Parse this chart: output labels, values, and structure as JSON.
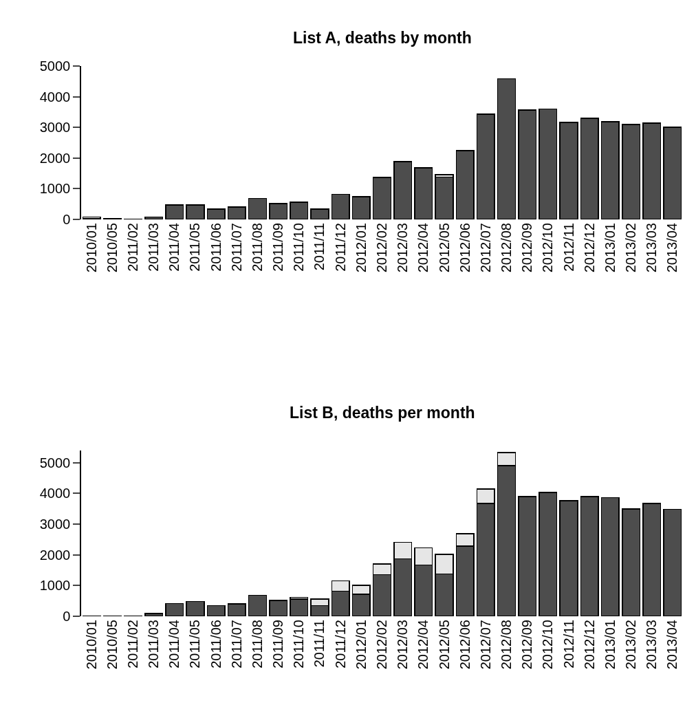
{
  "chart_data": [
    {
      "type": "bar",
      "title": "List A, deaths by month",
      "stacked": true,
      "categories": [
        "2010/01",
        "2010/05",
        "2011/02",
        "2011/03",
        "2011/04",
        "2011/05",
        "2011/06",
        "2011/07",
        "2011/08",
        "2011/09",
        "2011/10",
        "2011/11",
        "2011/12",
        "2012/01",
        "2012/02",
        "2012/03",
        "2012/04",
        "2012/05",
        "2012/06",
        "2012/07",
        "2012/08",
        "2012/09",
        "2012/10",
        "2012/11",
        "2012/12",
        "2013/01",
        "2013/02",
        "2013/03",
        "2013/04"
      ],
      "series": [
        {
          "color": "#4d4d4d",
          "values": [
            20,
            20,
            10,
            80,
            470,
            470,
            340,
            400,
            680,
            520,
            560,
            340,
            820,
            740,
            1370,
            1880,
            1680,
            1380,
            2240,
            3430,
            4580,
            3570,
            3600,
            3160,
            3300,
            3180,
            3090,
            3140,
            3010
          ]
        },
        {
          "color": "#e6e6e6",
          "values": [
            60,
            null,
            null,
            null,
            null,
            null,
            null,
            null,
            null,
            null,
            null,
            null,
            null,
            null,
            null,
            null,
            null,
            80,
            null,
            null,
            null,
            null,
            null,
            null,
            null,
            null,
            null,
            null,
            null
          ]
        }
      ],
      "ylim": [
        0,
        5000
      ],
      "yticks": [
        0,
        1000,
        2000,
        3000,
        4000,
        5000
      ],
      "grid": false
    },
    {
      "type": "bar",
      "title": "List B, deaths per month",
      "stacked": true,
      "categories": [
        "2010/01",
        "2010/05",
        "2011/02",
        "2011/03",
        "2011/04",
        "2011/05",
        "2011/06",
        "2011/07",
        "2011/08",
        "2011/09",
        "2011/10",
        "2011/11",
        "2011/12",
        "2012/01",
        "2012/02",
        "2012/03",
        "2012/04",
        "2012/05",
        "2012/06",
        "2012/07",
        "2012/08",
        "2012/09",
        "2012/10",
        "2012/11",
        "2012/12",
        "2013/01",
        "2013/02",
        "2013/03",
        "2013/04"
      ],
      "series": [
        {
          "color": "#4d4d4d",
          "values": [
            10,
            10,
            10,
            90,
            410,
            480,
            350,
            400,
            680,
            520,
            560,
            350,
            820,
            720,
            1360,
            1870,
            1670,
            1380,
            2290,
            3670,
            4910,
            3900,
            4030,
            3770,
            3900,
            3860,
            3500,
            3680,
            3480
          ]
        },
        {
          "color": "#e6e6e6",
          "values": [
            null,
            null,
            null,
            null,
            null,
            null,
            null,
            null,
            null,
            null,
            60,
            210,
            330,
            290,
            340,
            540,
            560,
            640,
            400,
            480,
            420,
            null,
            null,
            null,
            null,
            null,
            null,
            null,
            null
          ]
        }
      ],
      "ylim": [
        0,
        5400
      ],
      "yticks": [
        0,
        1000,
        2000,
        3000,
        4000,
        5000
      ],
      "grid": false
    }
  ]
}
